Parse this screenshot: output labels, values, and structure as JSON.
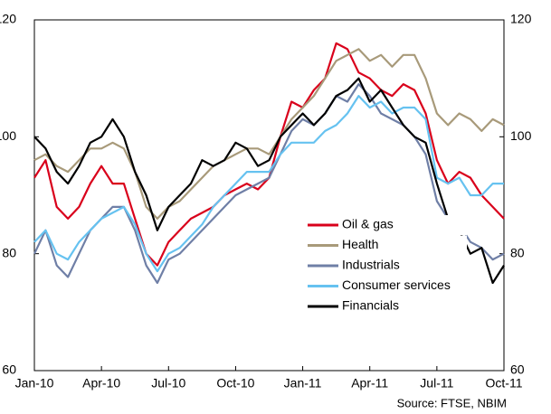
{
  "chart_data": {
    "type": "line",
    "source": "Source: FTSE, NBIM",
    "x": [
      0,
      0.5,
      1,
      1.5,
      2,
      2.5,
      3,
      3.5,
      4,
      4.5,
      5,
      5.5,
      6,
      6.5,
      7,
      7.5,
      8,
      8.5,
      9,
      9.5,
      10,
      10.5,
      11,
      11.5,
      12,
      12.5,
      13,
      13.5,
      14,
      14.5,
      15,
      15.5,
      16,
      16.5,
      17,
      17.5,
      18,
      18.5,
      19,
      19.5,
      20,
      20.5,
      21
    ],
    "xlim": [
      0,
      21
    ],
    "xticks": [
      {
        "value": 0,
        "label": "Jan-10"
      },
      {
        "value": 3,
        "label": "Apr-10"
      },
      {
        "value": 6,
        "label": "Jul-10"
      },
      {
        "value": 9,
        "label": "Oct-10"
      },
      {
        "value": 12,
        "label": "Jan-11"
      },
      {
        "value": 15,
        "label": "Apr-11"
      },
      {
        "value": 18,
        "label": "Jul-11"
      },
      {
        "value": 21,
        "label": "Oct-11"
      }
    ],
    "ylim": [
      60,
      120
    ],
    "yticks": [
      60,
      80,
      100,
      120
    ],
    "y2lim": [
      60,
      120
    ],
    "y2ticks": [
      60,
      80,
      100,
      120
    ],
    "series": [
      {
        "name": "Oil & gas",
        "color": "#d9001b",
        "values": [
          93,
          96,
          88,
          86,
          88,
          92,
          95,
          92,
          92,
          86,
          80,
          78,
          82,
          84,
          86,
          87,
          88,
          90,
          91,
          92,
          91,
          93,
          100,
          106,
          105,
          108,
          110,
          116,
          115,
          111,
          110,
          108,
          107,
          109,
          108,
          104,
          96,
          92,
          94,
          93,
          90,
          88,
          86
        ]
      },
      {
        "name": "Health",
        "color": "#a89a7a",
        "values": [
          96,
          97,
          95,
          94,
          96,
          98,
          98,
          99,
          98,
          94,
          88,
          86,
          88,
          89,
          91,
          93,
          95,
          96,
          97,
          98,
          98,
          97,
          100,
          103,
          105,
          107,
          110,
          113,
          114,
          115,
          113,
          114,
          112,
          114,
          114,
          110,
          104,
          102,
          104,
          103,
          101,
          103,
          102
        ]
      },
      {
        "name": "Industrials",
        "color": "#6f7fa6",
        "values": [
          80,
          84,
          78,
          76,
          80,
          84,
          86,
          88,
          88,
          84,
          78,
          75,
          79,
          80,
          82,
          84,
          86,
          88,
          90,
          91,
          92,
          93,
          97,
          101,
          103,
          102,
          104,
          107,
          106,
          109,
          107,
          104,
          103,
          102,
          100,
          97,
          89,
          86,
          85,
          82,
          81,
          79,
          80
        ]
      },
      {
        "name": "Consumer services",
        "color": "#66c2f0",
        "values": [
          82,
          84,
          80,
          79,
          82,
          84,
          86,
          87,
          88,
          85,
          80,
          77,
          80,
          81,
          83,
          85,
          88,
          90,
          92,
          94,
          94,
          94,
          97,
          99,
          99,
          99,
          101,
          102,
          104,
          107,
          105,
          106,
          104,
          105,
          105,
          103,
          93,
          92,
          93,
          90,
          90,
          92,
          92
        ]
      },
      {
        "name": "Financials",
        "color": "#000000",
        "values": [
          100,
          98,
          94,
          92,
          95,
          99,
          100,
          103,
          100,
          94,
          90,
          84,
          88,
          90,
          92,
          96,
          95,
          96,
          99,
          98,
          95,
          96,
          100,
          102,
          104,
          102,
          104,
          107,
          108,
          110,
          106,
          108,
          105,
          102,
          100,
          99,
          92,
          86,
          84,
          80,
          81,
          75,
          78
        ]
      }
    ]
  }
}
